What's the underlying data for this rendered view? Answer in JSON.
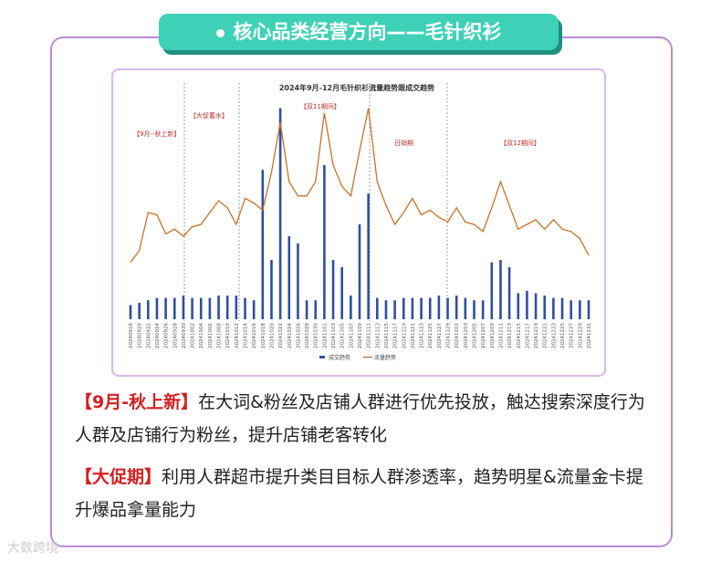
{
  "header": {
    "title": "核心品类经营方向——毛针织衫"
  },
  "chart_data": {
    "type": "bar-line",
    "title": "2024年9月-12月毛针织衫流量趋势跟成交趋势",
    "categories": [
      "20240918",
      "20240920",
      "20240922",
      "20240924",
      "20240926",
      "20240928",
      "20240930",
      "20241002",
      "20241004",
      "20241006",
      "20241008",
      "20241010",
      "20241012",
      "20241014",
      "20241016",
      "20241018",
      "20241020",
      "20241022",
      "20241024",
      "20241026",
      "20241028",
      "20241030",
      "20241101",
      "20241103",
      "20241105",
      "20241107",
      "20241109",
      "20241111",
      "20241113",
      "20241115",
      "20241117",
      "20241119",
      "20241121",
      "20241123",
      "20241125",
      "20241127",
      "20241129",
      "20241201",
      "20241203",
      "20241205",
      "20241207",
      "20241209",
      "20241211",
      "20241213",
      "20241215",
      "20241217",
      "20241219",
      "20241221",
      "20241223",
      "20241225",
      "20241227",
      "20241229",
      "20241231"
    ],
    "series": [
      {
        "name": "成交趋势",
        "type": "bar",
        "color": "#2f4fa3",
        "values": [
          6,
          7,
          8,
          9,
          9,
          9,
          10,
          9,
          9,
          9,
          10,
          10,
          10,
          9,
          8,
          63,
          25,
          89,
          35,
          32,
          8,
          8,
          65,
          25,
          22,
          10,
          40,
          53,
          9,
          8,
          8,
          9,
          9,
          9,
          9,
          10,
          9,
          10,
          9,
          8,
          8,
          24,
          25,
          22,
          11,
          12,
          11,
          10,
          9,
          9,
          8,
          8,
          8
        ]
      },
      {
        "name": "流量趋势",
        "type": "line",
        "color": "#c8702a",
        "values": [
          24,
          29,
          45,
          44,
          36,
          38,
          35,
          39,
          40,
          45,
          50,
          47,
          40,
          51,
          49,
          46,
          62,
          83,
          58,
          52,
          52,
          58,
          87,
          65,
          56,
          52,
          71,
          89,
          58,
          48,
          40,
          45,
          51,
          44,
          46,
          43,
          41,
          47,
          41,
          40,
          37,
          47,
          58,
          48,
          38,
          40,
          42,
          38,
          42,
          38,
          37,
          34,
          27
        ]
      }
    ],
    "ylim": [
      0,
      100
    ],
    "annotations": [
      "【9月--秋上新】",
      "【大促蓄水】",
      "【双11期间】",
      "日销期",
      "【双12期间】"
    ]
  },
  "paragraphs": [
    {
      "tag": "【9月-秋上新】",
      "text": "在大词&粉丝及店铺人群进行优先投放，触达搜索深度行为人群及店铺行为粉丝，提升店铺老客转化"
    },
    {
      "tag": "【大促期】",
      "text": "利用人群超市提升类目目标人群渗透率，趋势明星&流量金卡提升爆品拿量能力"
    }
  ],
  "watermark": "大数跨境"
}
